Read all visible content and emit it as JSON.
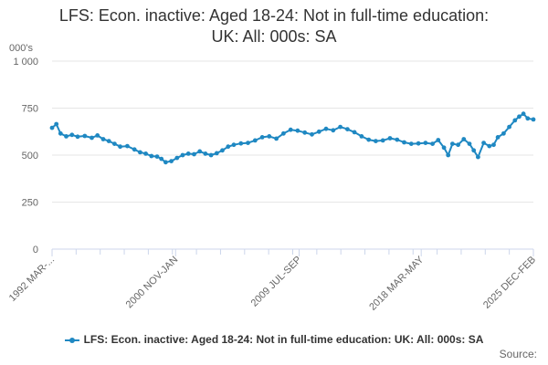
{
  "chart_data": {
    "type": "line",
    "title_lines": [
      "LFS: Econ. inactive: Aged 18-24: Not in full-time education:",
      "UK: All: 000s: SA"
    ],
    "y_unit_label": "000's",
    "ylim": [
      0,
      1000
    ],
    "y_ticks": [
      0,
      250,
      500,
      750,
      1000
    ],
    "y_tick_labels": [
      "0",
      "250",
      "500",
      "750",
      "1 000"
    ],
    "x_tick_labels": [
      "1992 MAR-...",
      "2000 NOV-JAN",
      "2009 JUL-SEP",
      "2018 MAR-MAY",
      "2025 DEC-FEB"
    ],
    "x_tick_years": [
      1992.2,
      2000.9,
      2009.6,
      2018.2,
      2026.1
    ],
    "grid": true,
    "legend_position": "bottom",
    "series": [
      {
        "name": "LFS: Econ. inactive: Aged 18-24: Not in full-time education: UK: All: 000s: SA",
        "color": "#1f88c2",
        "points": [
          [
            1992.2,
            645
          ],
          [
            1992.5,
            665
          ],
          [
            1992.8,
            615
          ],
          [
            1993.2,
            600
          ],
          [
            1993.6,
            608
          ],
          [
            1994.0,
            598
          ],
          [
            1994.5,
            602
          ],
          [
            1995.0,
            592
          ],
          [
            1995.4,
            605
          ],
          [
            1995.8,
            585
          ],
          [
            1996.2,
            575
          ],
          [
            1996.6,
            560
          ],
          [
            1997.0,
            545
          ],
          [
            1997.5,
            548
          ],
          [
            1998.0,
            530
          ],
          [
            1998.4,
            515
          ],
          [
            1998.8,
            508
          ],
          [
            1999.2,
            495
          ],
          [
            1999.6,
            492
          ],
          [
            1999.9,
            480
          ],
          [
            2000.2,
            462
          ],
          [
            2000.6,
            468
          ],
          [
            2001.0,
            485
          ],
          [
            2001.4,
            500
          ],
          [
            2001.8,
            508
          ],
          [
            2002.2,
            505
          ],
          [
            2002.6,
            520
          ],
          [
            2003.0,
            508
          ],
          [
            2003.4,
            500
          ],
          [
            2003.8,
            510
          ],
          [
            2004.2,
            525
          ],
          [
            2004.6,
            545
          ],
          [
            2005.0,
            555
          ],
          [
            2005.5,
            562
          ],
          [
            2006.0,
            565
          ],
          [
            2006.5,
            578
          ],
          [
            2007.0,
            595
          ],
          [
            2007.5,
            600
          ],
          [
            2008.0,
            588
          ],
          [
            2008.5,
            615
          ],
          [
            2009.0,
            635
          ],
          [
            2009.5,
            630
          ],
          [
            2010.0,
            620
          ],
          [
            2010.5,
            610
          ],
          [
            2011.0,
            625
          ],
          [
            2011.5,
            640
          ],
          [
            2012.0,
            632
          ],
          [
            2012.5,
            650
          ],
          [
            2013.0,
            638
          ],
          [
            2013.5,
            622
          ],
          [
            2014.0,
            600
          ],
          [
            2014.5,
            582
          ],
          [
            2015.0,
            575
          ],
          [
            2015.5,
            578
          ],
          [
            2016.0,
            590
          ],
          [
            2016.5,
            582
          ],
          [
            2017.0,
            568
          ],
          [
            2017.5,
            560
          ],
          [
            2018.0,
            562
          ],
          [
            2018.5,
            565
          ],
          [
            2019.0,
            560
          ],
          [
            2019.4,
            580
          ],
          [
            2019.8,
            540
          ],
          [
            2020.1,
            500
          ],
          [
            2020.4,
            560
          ],
          [
            2020.8,
            555
          ],
          [
            2021.2,
            585
          ],
          [
            2021.6,
            560
          ],
          [
            2021.9,
            525
          ],
          [
            2022.2,
            490
          ],
          [
            2022.6,
            565
          ],
          [
            2023.0,
            548
          ],
          [
            2023.3,
            555
          ],
          [
            2023.6,
            595
          ],
          [
            2024.0,
            615
          ],
          [
            2024.4,
            650
          ],
          [
            2024.8,
            685
          ],
          [
            2025.1,
            705
          ],
          [
            2025.4,
            720
          ],
          [
            2025.7,
            695
          ],
          [
            2026.1,
            690
          ]
        ]
      }
    ]
  },
  "source_label": "Source:"
}
